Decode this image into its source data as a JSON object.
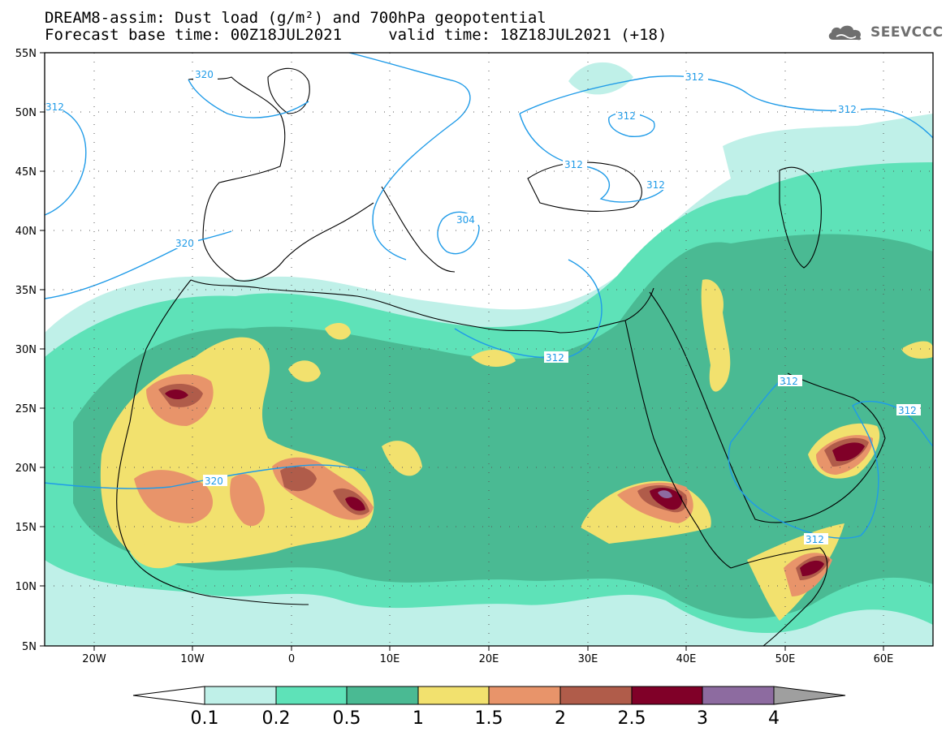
{
  "header": {
    "title_line1": "DREAM8-assim: Dust load (g/m²) and 700hPa geopotential",
    "title_line2": "Forecast base time: 00Z18JUL2021     valid time: 18Z18JUL2021 (+18)"
  },
  "logo": {
    "text": "SEEVCCC",
    "icon": "cloud-logo-icon"
  },
  "axes": {
    "lat_labels": [
      "55N",
      "50N",
      "45N",
      "40N",
      "35N",
      "30N",
      "25N",
      "20N",
      "15N",
      "10N",
      "5N"
    ],
    "lon_labels": [
      "20W",
      "10W",
      "0",
      "10E",
      "20E",
      "30E",
      "40E",
      "50E",
      "60E"
    ]
  },
  "colorbar": {
    "levels": [
      "0.1",
      "0.2",
      "0.5",
      "1",
      "1.5",
      "2",
      "2.5",
      "3",
      "4"
    ],
    "colors": [
      "#ffffff",
      "#bff0e8",
      "#5ee2b8",
      "#4aba93",
      "#f2e16e",
      "#e8946a",
      "#b05c4a",
      "#800028",
      "#8d6ba0",
      "#9f9f9f"
    ]
  },
  "contours": {
    "labels": [
      "320",
      "312",
      "312",
      "312",
      "312",
      "304",
      "320",
      "312",
      "320",
      "312",
      "312",
      "312",
      "312",
      "312"
    ],
    "color": "#1f9be8"
  },
  "dust_colors": {
    "light": "#bff0e8",
    "low": "#5ee2b8",
    "mid": "#4aba93",
    "yellow": "#f2e16e",
    "orange": "#e8946a",
    "brown": "#b05c4a",
    "darkred": "#800028",
    "purple": "#8d6ba0"
  }
}
